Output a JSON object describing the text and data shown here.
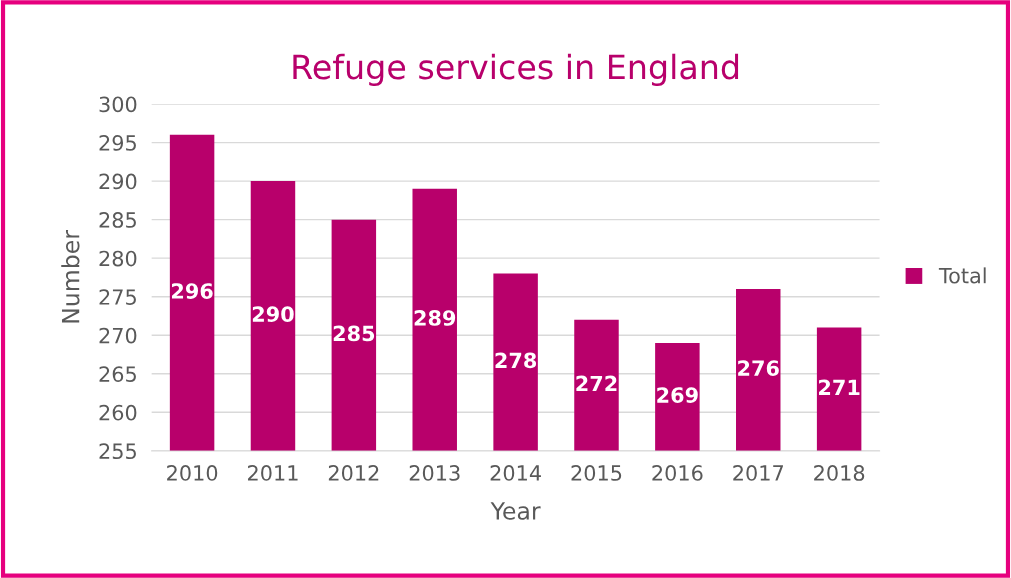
{
  "chart_data": {
    "type": "bar",
    "title": "Refuge services in England",
    "xlabel": "Year",
    "ylabel": "Number",
    "categories": [
      "2010",
      "2011",
      "2012",
      "2013",
      "2014",
      "2015",
      "2016",
      "2017",
      "2018"
    ],
    "series": [
      {
        "name": "Total",
        "color": "#b8006b",
        "values": [
          296,
          290,
          285,
          289,
          278,
          272,
          269,
          276,
          271
        ]
      }
    ],
    "ylim": [
      255,
      300
    ],
    "yticks": [
      255,
      260,
      265,
      270,
      275,
      280,
      285,
      290,
      295,
      300
    ],
    "grid": "y",
    "legend": "right",
    "data_labels": true
  }
}
